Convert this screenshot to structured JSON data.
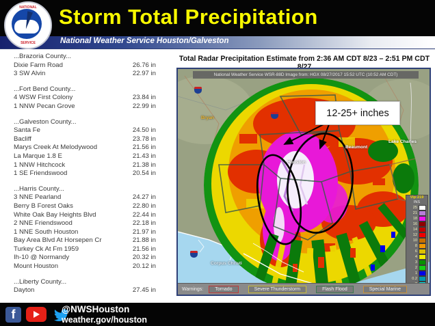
{
  "header": {
    "title": "Storm Total Precipitation",
    "subtitle": "National Weather Service Houston/Galveston"
  },
  "report": {
    "groups": [
      {
        "county": "...Brazoria County...",
        "rows": [
          {
            "name": "Dixie Farm Road",
            "value": "26.76 in"
          },
          {
            "name": "3 SW Alvin",
            "value": "22.97 in"
          }
        ]
      },
      {
        "county": "...Fort Bend County...",
        "rows": [
          {
            "name": "4 WSW First Colony",
            "value": "23.84 in"
          },
          {
            "name": "1 NNW Pecan Grove",
            "value": "22.99 in"
          }
        ]
      },
      {
        "county": "...Galveston County...",
        "rows": [
          {
            "name": "Santa Fe",
            "value": "24.50 in"
          },
          {
            "name": "Bacliff",
            "value": "23.78 in"
          },
          {
            "name": "Marys Creek At Melodywood",
            "value": "21.56 in"
          },
          {
            "name": "La Marque 1.8 E",
            "value": "21.43 in"
          },
          {
            "name": "1 NNW Hitchcock",
            "value": "21.38 in"
          },
          {
            "name": "1 SE Friendswood",
            "value": "20.54 in"
          }
        ]
      },
      {
        "county": "...Harris County...",
        "rows": [
          {
            "name": "3 NNE Pearland",
            "value": "24.27 in"
          },
          {
            "name": "Berry B Forest Oaks",
            "value": "22.80 in"
          },
          {
            "name": "White Oak Bay Heights Blvd",
            "value": "22.44 in"
          },
          {
            "name": "2 NNE Friendswood",
            "value": "22.18 in"
          },
          {
            "name": "1 NNE South Houston",
            "value": "21.97 in"
          },
          {
            "name": "Bay Area Blvd At Horsepen Cr",
            "value": "21.88 in"
          },
          {
            "name": "Turkey Ck At Fm 1959",
            "value": "21.56 in"
          },
          {
            "name": "Ih-10 @ Normandy",
            "value": "20.32 in"
          },
          {
            "name": "Mount Houston",
            "value": "20.12 in"
          }
        ]
      },
      {
        "county": "...Liberty County...",
        "rows": [
          {
            "name": "Dayton",
            "value": "27.45 in"
          }
        ]
      }
    ]
  },
  "map": {
    "title": "Total Radar Precipitation Estimate from 2:36 AM CDT 8/23 – 2:51 PM CDT 8/27",
    "caption": "National Weather Service WSR-88D Image from: HGX 08/27/2017 15:52 UTC (10:52 AM CDT)",
    "annotation": "12-25+ inches",
    "cities": [
      {
        "label": "Bryan",
        "color": "#f0b830"
      },
      {
        "label": "Houston",
        "color": "#ffffff"
      },
      {
        "label": "Beaumont",
        "color": "#ffffff"
      },
      {
        "label": "Lake Charles",
        "color": "#ffffff"
      },
      {
        "label": "Corpus Christi",
        "color": "#dcebf5"
      }
    ],
    "legend": {
      "header": "Vip:219",
      "units": "INS",
      "levels": [
        {
          "label": "25",
          "color": "#ffffff"
        },
        {
          "label": "21",
          "color": "#b87cd8"
        },
        {
          "label": "18",
          "color": "#ee14ee"
        },
        {
          "label": "16",
          "color": "#8c0000"
        },
        {
          "label": "14",
          "color": "#c40000"
        },
        {
          "label": "12",
          "color": "#f00000"
        },
        {
          "label": "10",
          "color": "#c87000"
        },
        {
          "label": "8",
          "color": "#f09800"
        },
        {
          "label": "6",
          "color": "#dcc000"
        },
        {
          "label": "4",
          "color": "#f0ec00"
        },
        {
          "label": "3",
          "color": "#089000"
        },
        {
          "label": "2",
          "color": "#14d014"
        },
        {
          "label": "1",
          "color": "#0000e8"
        },
        {
          "label": "0.2",
          "color": "#0098b0"
        },
        {
          "label": "T",
          "color": "#00e8e8"
        },
        {
          "label": "ND",
          "color": "#949494"
        }
      ]
    },
    "warnings": {
      "label": "Warnings:",
      "items": [
        {
          "label": "Tornado",
          "color": "#c23a3a"
        },
        {
          "label": "Severe Thunderstorm",
          "color": "#c8bc3c"
        },
        {
          "label": "Flash Flood",
          "color": "#3c7a50"
        },
        {
          "label": "Special Marine",
          "color": "#c8923c"
        }
      ]
    }
  },
  "footer": {
    "handle": "@NWSHouston",
    "url": "weather.gov/houston"
  }
}
